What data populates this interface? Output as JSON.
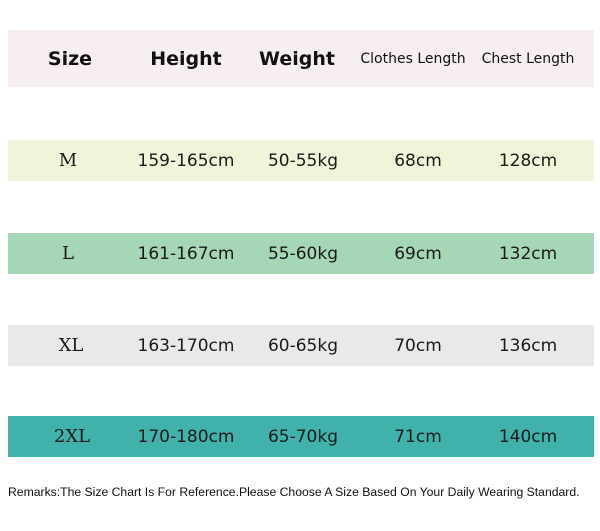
{
  "header": [
    "Size",
    "Height",
    "Weight",
    "Clothes Length",
    "Chest Length"
  ],
  "rows": [
    {
      "size": "M",
      "height": "159-165cm",
      "weight": "50-55kg",
      "clothes_length": "68cm",
      "chest_length": "128cm",
      "color": "#eef5d8"
    },
    {
      "size": "L",
      "height": "161-167cm",
      "weight": "55-60kg",
      "clothes_length": "69cm",
      "chest_length": "132cm",
      "color": "#a5d6b5"
    },
    {
      "size": "XL",
      "height": "163-170cm",
      "weight": "60-65kg",
      "clothes_length": "70cm",
      "chest_length": "136cm",
      "color": "#e9e9ea"
    },
    {
      "size": "2XL",
      "height": "170-180cm",
      "weight": "65-70kg",
      "clothes_length": "71cm",
      "chest_length": "140cm",
      "color": "#41b2ab"
    }
  ],
  "header_color": "#f6eef2",
  "remark": "Remarks:The Size Chart Is For Reference.Please Choose A Size Based On Your Daily Wearing Standard."
}
